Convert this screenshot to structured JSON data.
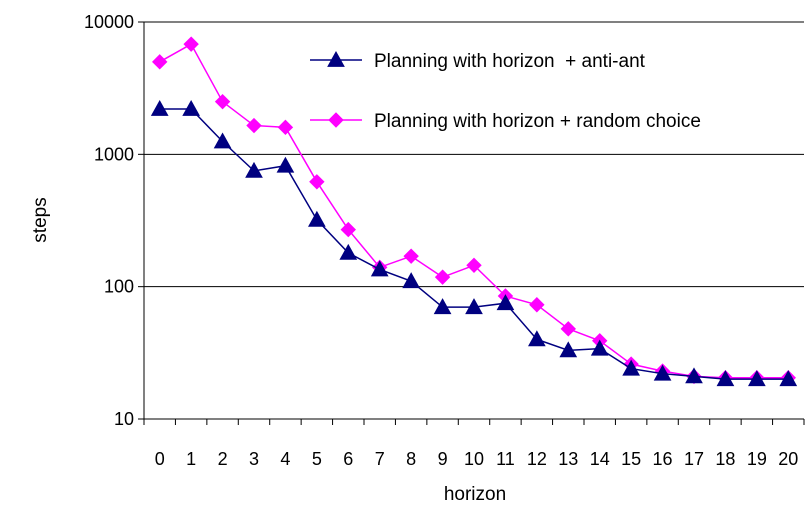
{
  "chart_data": {
    "type": "line",
    "xlabel": "horizon",
    "ylabel": "steps",
    "yscale": "log",
    "ylim": [
      10,
      10000
    ],
    "yticks": [
      "10",
      "100",
      "1000",
      "10000"
    ],
    "x": [
      0,
      1,
      2,
      3,
      4,
      5,
      6,
      7,
      8,
      9,
      10,
      11,
      12,
      13,
      14,
      15,
      16,
      17,
      18,
      19,
      20
    ],
    "xtick_labels": [
      "0",
      "1",
      "2",
      "3",
      "4",
      "5",
      "6",
      "7",
      "8",
      "9",
      "10",
      "11",
      "12",
      "13",
      "14",
      "15",
      "16",
      "17",
      "18",
      "19",
      "20"
    ],
    "grid": "horizontal major lines",
    "legend_position": "top-right",
    "series": [
      {
        "name": "Planning with horizon  + anti-ant",
        "marker": "triangle",
        "color": "#000080",
        "values": [
          2200,
          2200,
          1250,
          750,
          820,
          320,
          180,
          135,
          110,
          70,
          70,
          75,
          40,
          33,
          34,
          24,
          22,
          21,
          20,
          20,
          20
        ]
      },
      {
        "name": "Planning with horizon + random choice",
        "marker": "diamond",
        "color": "#ff00ff",
        "values": [
          5000,
          6800,
          2500,
          1650,
          1600,
          620,
          270,
          140,
          170,
          118,
          145,
          85,
          73,
          48,
          39,
          26,
          23,
          21,
          20.5,
          20.5,
          20.5
        ]
      }
    ]
  }
}
